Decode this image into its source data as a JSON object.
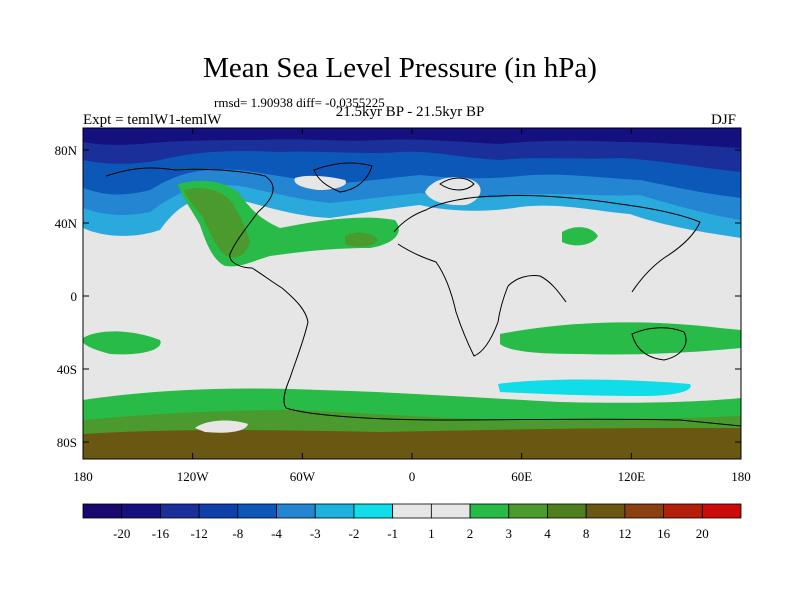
{
  "title": "Mean Sea Level Pressure (in hPa)",
  "stats": "rmsd= 1.90938 diff= -0.0355225",
  "period": "21.5kyr BP - 21.5kyr BP",
  "expt": "Expt = temlW1-temlW",
  "season": "DJF",
  "axes": {
    "x_ticks": [
      "180",
      "120W",
      "60W",
      "0",
      "60E",
      "120E",
      "180"
    ],
    "y_ticks": [
      "80N",
      "40N",
      "0",
      "40S",
      "80S"
    ]
  },
  "legend": {
    "labels": [
      "-20",
      "-16",
      "-12",
      "-8",
      "-4",
      "-3",
      "-2",
      "-1",
      "1",
      "2",
      "3",
      "4",
      "8",
      "12",
      "16",
      "20"
    ],
    "colors": [
      "#190870",
      "#14107f",
      "#1a2f9a",
      "#0d40aa",
      "#0b58b8",
      "#2485d2",
      "#1fb1dd",
      "#11dde8",
      "#e6e6e6",
      "#29bb47",
      "#4a9a2e",
      "#4f7e1c",
      "#6a5812",
      "#8a4010",
      "#b2200c",
      "#cc0a0a"
    ]
  },
  "palette": {
    "neutral": "#e6e6e6",
    "coast": "#000000"
  }
}
